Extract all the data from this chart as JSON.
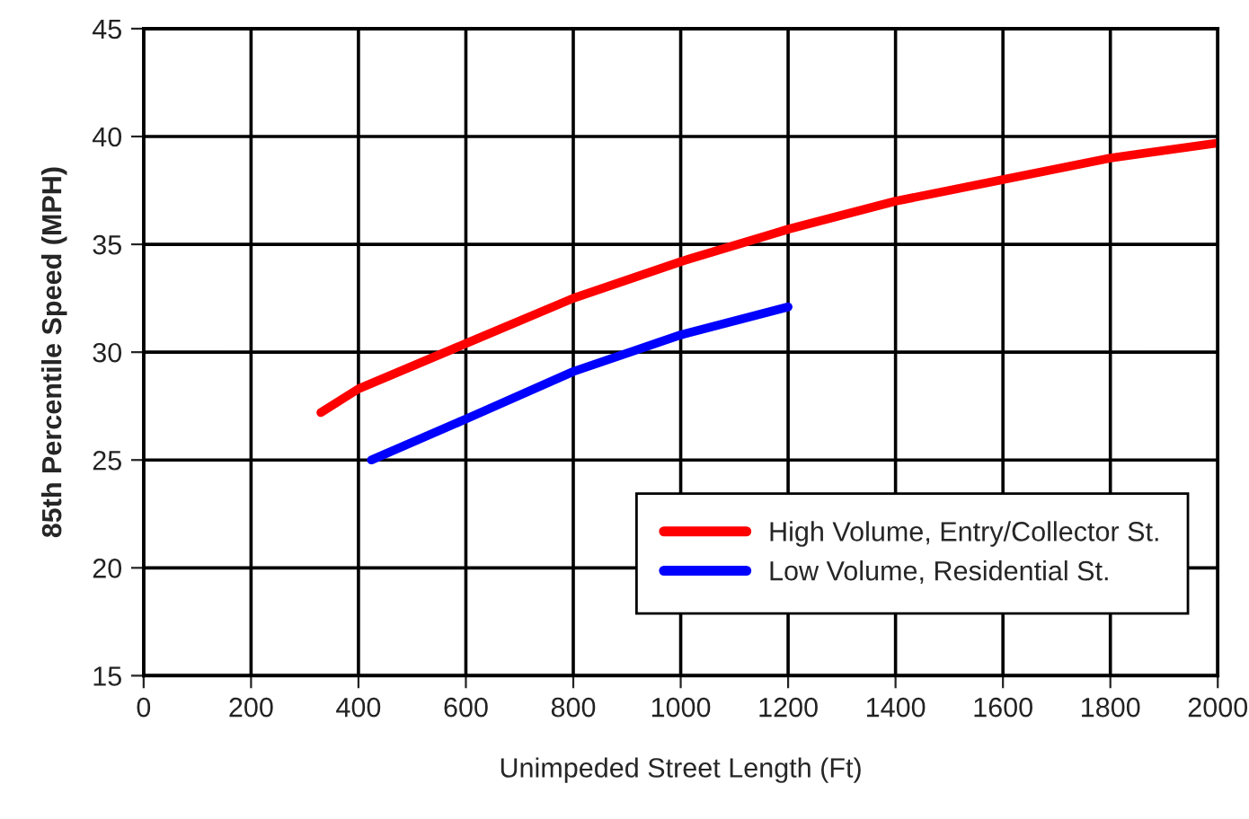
{
  "chart_data": {
    "type": "line",
    "xlabel": "Unimpeded Street Length (Ft)",
    "ylabel": "85th Percentile Speed (MPH)",
    "xlim": [
      0,
      2000
    ],
    "xticks": [
      0,
      200,
      400,
      600,
      800,
      1000,
      1200,
      1400,
      1600,
      1800,
      2000
    ],
    "ylim": [
      15,
      45
    ],
    "yticks": [
      15,
      20,
      25,
      30,
      35,
      40,
      45
    ],
    "grid": true,
    "legend": "bottom right",
    "line_style": "solid",
    "marker": "none",
    "series": [
      {
        "name": "High Volume, Entry/Collector St.",
        "color": "#ff0000",
        "x": [
          330,
          400,
          600,
          800,
          1000,
          1200,
          1400,
          1600,
          1800,
          2000
        ],
        "values": [
          27.2,
          28.3,
          30.4,
          32.5,
          34.2,
          35.7,
          37.0,
          38.0,
          39.0,
          39.7
        ]
      },
      {
        "name": "Low Volume, Residential St.",
        "color": "#0000ff",
        "x": [
          424,
          600,
          800,
          1000,
          1200
        ],
        "values": [
          25.0,
          26.9,
          29.1,
          30.8,
          32.1
        ]
      }
    ]
  }
}
